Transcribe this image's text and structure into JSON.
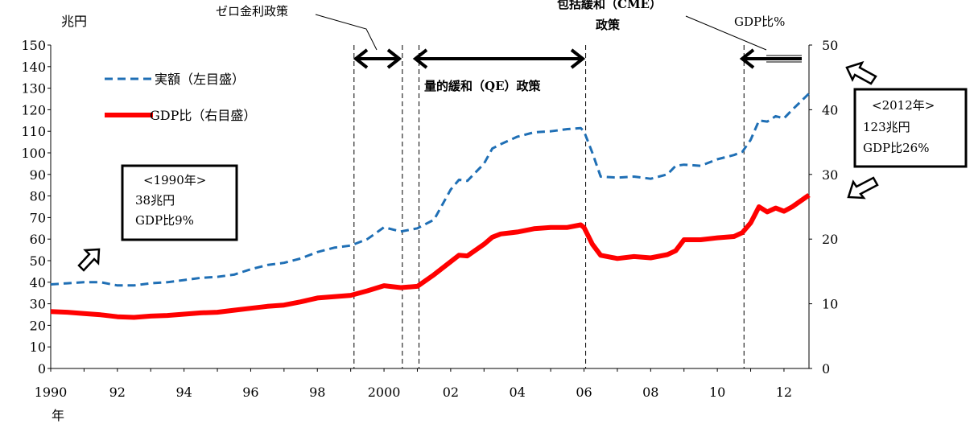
{
  "chart_data": {
    "type": "line",
    "y_left_label": "兆円",
    "x_unit_label": "年",
    "ylim_left": [
      0,
      150
    ],
    "ylim_right": [
      0,
      50
    ],
    "xlim": [
      1990,
      2012.75
    ],
    "y_left_ticks": [
      "0",
      "10",
      "20",
      "30",
      "40",
      "50",
      "60",
      "70",
      "80",
      "90",
      "100",
      "110",
      "120",
      "130",
      "140",
      "150"
    ],
    "y_right_ticks": [
      "0",
      "10",
      "20",
      "30",
      "40",
      "50"
    ],
    "x_ticks": [
      {
        "x": 1990,
        "label": "1990"
      },
      {
        "x": 1992,
        "label": "92"
      },
      {
        "x": 1994,
        "label": "94"
      },
      {
        "x": 1996,
        "label": "96"
      },
      {
        "x": 1998,
        "label": "98"
      },
      {
        "x": 2000,
        "label": "2000"
      },
      {
        "x": 2002,
        "label": "02"
      },
      {
        "x": 2004,
        "label": "04"
      },
      {
        "x": 2006,
        "label": "06"
      },
      {
        "x": 2008,
        "label": "08"
      },
      {
        "x": 2010,
        "label": "10"
      },
      {
        "x": 2012,
        "label": "12"
      }
    ],
    "grid": false,
    "series": [
      {
        "name": "実額（左目盛）",
        "axis": "left",
        "color": "#1f6fb5",
        "style": "dashed",
        "points": [
          [
            1990,
            39
          ],
          [
            1990.5,
            39.5
          ],
          [
            1991,
            40
          ],
          [
            1991.5,
            40
          ],
          [
            1992,
            38.5
          ],
          [
            1992.5,
            38.5
          ],
          [
            1993,
            39.5
          ],
          [
            1993.5,
            40
          ],
          [
            1994,
            41
          ],
          [
            1994.5,
            42
          ],
          [
            1995,
            42.5
          ],
          [
            1995.5,
            43.5
          ],
          [
            1996,
            46
          ],
          [
            1996.5,
            48
          ],
          [
            1997,
            49
          ],
          [
            1997.5,
            51
          ],
          [
            1998,
            54
          ],
          [
            1998.5,
            56
          ],
          [
            1999,
            57
          ],
          [
            1999.5,
            60
          ],
          [
            2000,
            65.5
          ],
          [
            2000.5,
            63.5
          ],
          [
            2001,
            65
          ],
          [
            2001.5,
            69
          ],
          [
            2002,
            83
          ],
          [
            2002.25,
            87.5
          ],
          [
            2002.5,
            87
          ],
          [
            2003,
            95
          ],
          [
            2003.25,
            102
          ],
          [
            2003.5,
            104
          ],
          [
            2004,
            107.5
          ],
          [
            2004.5,
            109.5
          ],
          [
            2005,
            110
          ],
          [
            2005.5,
            111
          ],
          [
            2005.9,
            111.5
          ],
          [
            2006,
            110
          ],
          [
            2006.25,
            100
          ],
          [
            2006.5,
            89
          ],
          [
            2007,
            88.5
          ],
          [
            2007.5,
            89
          ],
          [
            2008,
            88
          ],
          [
            2008.5,
            90
          ],
          [
            2008.75,
            94
          ],
          [
            2009,
            94.5
          ],
          [
            2009.5,
            94
          ],
          [
            2010,
            97
          ],
          [
            2010.5,
            99
          ],
          [
            2010.75,
            100.5
          ],
          [
            2011,
            106
          ],
          [
            2011.25,
            115
          ],
          [
            2011.5,
            114.5
          ],
          [
            2011.75,
            117
          ],
          [
            2012,
            116
          ],
          [
            2012.25,
            120
          ],
          [
            2012.75,
            127.5
          ]
        ]
      },
      {
        "name": "GDP比（右目盛）",
        "axis": "right",
        "color": "#ff0000",
        "style": "solid",
        "points": [
          [
            1990,
            8.8
          ],
          [
            1990.5,
            8.7
          ],
          [
            1991,
            8.5
          ],
          [
            1991.5,
            8.3
          ],
          [
            1992,
            8.0
          ],
          [
            1992.5,
            7.9
          ],
          [
            1993,
            8.1
          ],
          [
            1993.5,
            8.2
          ],
          [
            1994,
            8.4
          ],
          [
            1994.5,
            8.6
          ],
          [
            1995,
            8.7
          ],
          [
            1995.5,
            9.0
          ],
          [
            1996,
            9.3
          ],
          [
            1996.5,
            9.6
          ],
          [
            1997,
            9.8
          ],
          [
            1997.5,
            10.3
          ],
          [
            1998,
            10.9
          ],
          [
            1998.5,
            11.1
          ],
          [
            1999,
            11.3
          ],
          [
            1999.5,
            12.0
          ],
          [
            2000,
            12.8
          ],
          [
            2000.5,
            12.5
          ],
          [
            2001,
            12.7
          ],
          [
            2001.5,
            14.5
          ],
          [
            2002,
            16.5
          ],
          [
            2002.25,
            17.5
          ],
          [
            2002.5,
            17.4
          ],
          [
            2003,
            19.2
          ],
          [
            2003.25,
            20.3
          ],
          [
            2003.5,
            20.8
          ],
          [
            2004,
            21.1
          ],
          [
            2004.5,
            21.6
          ],
          [
            2005,
            21.8
          ],
          [
            2005.5,
            21.8
          ],
          [
            2005.9,
            22.2
          ],
          [
            2006,
            21.8
          ],
          [
            2006.25,
            19.2
          ],
          [
            2006.5,
            17.5
          ],
          [
            2007,
            17.0
          ],
          [
            2007.5,
            17.3
          ],
          [
            2008,
            17.1
          ],
          [
            2008.5,
            17.6
          ],
          [
            2008.75,
            18.2
          ],
          [
            2009,
            19.9
          ],
          [
            2009.5,
            19.9
          ],
          [
            2010,
            20.2
          ],
          [
            2010.5,
            20.4
          ],
          [
            2010.75,
            21.0
          ],
          [
            2011,
            22.5
          ],
          [
            2011.25,
            25.0
          ],
          [
            2011.5,
            24.2
          ],
          [
            2011.75,
            24.8
          ],
          [
            2012,
            24.3
          ],
          [
            2012.25,
            25.0
          ],
          [
            2012.75,
            26.8
          ]
        ]
      }
    ],
    "policy_lines": [
      1999.1,
      2000.55,
      2001.05,
      2006.05,
      2010.8
    ],
    "annotations": {
      "zero_rate": "ゼロ金利政策",
      "qe": "量的緩和（QE）政策",
      "cme_line1": "包括緩和（CME）",
      "cme_line2": "政策",
      "gdp_pct": "GDP比%",
      "box1990": [
        "<1990年>",
        "38兆円",
        "GDP比9%"
      ],
      "box2012": [
        "<2012年>",
        "123兆円",
        "GDP比26%"
      ]
    }
  }
}
